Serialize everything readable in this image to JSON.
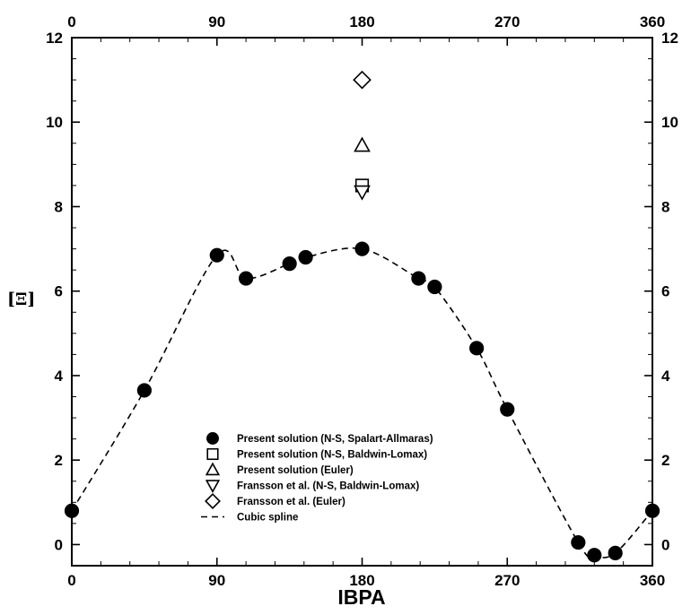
{
  "figure": {
    "background": "#ffffff",
    "ink_color": "#000000",
    "axes_style": "closed box, tick labels mirrored on top and right axes, ticks pointing inward"
  },
  "chart_data": {
    "type": "scatter",
    "title": "",
    "xlabel": "IBPA",
    "ylabel": "[Ξ]",
    "xlim": [
      0,
      360
    ],
    "ylim": [
      -0.5,
      12
    ],
    "xticks": [
      0,
      90,
      180,
      270,
      360
    ],
    "yticks": [
      0,
      2,
      4,
      6,
      8,
      10,
      12
    ],
    "x_minor_step": 18,
    "y_minor_step": 0.5,
    "grid": false,
    "legend_position": "inside, lower-center",
    "series": [
      {
        "name": "Present solution (N-S, Spalart-Allmaras)",
        "marker": "filled-circle-icon",
        "points": [
          [
            0,
            0.8
          ],
          [
            45,
            3.65
          ],
          [
            90,
            6.85
          ],
          [
            108,
            6.3
          ],
          [
            135,
            6.65
          ],
          [
            145,
            6.8
          ],
          [
            180,
            7.0
          ],
          [
            215,
            6.3
          ],
          [
            225,
            6.1
          ],
          [
            251,
            4.65
          ],
          [
            270,
            3.2
          ],
          [
            314,
            0.05
          ],
          [
            324,
            -0.25
          ],
          [
            337,
            -0.2
          ],
          [
            360,
            0.8
          ]
        ]
      },
      {
        "name": "Present solution (N-S, Baldwin-Lomax)",
        "marker": "open-square-icon",
        "points": [
          [
            180,
            8.5
          ]
        ]
      },
      {
        "name": "Present solution (Euler)",
        "marker": "open-triangle-up-icon",
        "points": [
          [
            180,
            9.45
          ]
        ]
      },
      {
        "name": "Fransson et al. (N-S, Baldwin-Lomax)",
        "marker": "open-triangle-down-icon",
        "points": [
          [
            180,
            8.35
          ]
        ]
      },
      {
        "name": "Fransson et al. (Euler)",
        "marker": "open-diamond-icon",
        "points": [
          [
            180,
            11.0
          ]
        ]
      }
    ],
    "spline": {
      "label": "Cubic spline",
      "style": "dashed",
      "through_series": 0
    },
    "legend": {
      "entries": [
        {
          "marker": "filled-circle-icon",
          "label": "Present solution (N-S, Spalart-Allmaras)"
        },
        {
          "marker": "open-square-icon",
          "label": "Present solution (N-S, Baldwin-Lomax)"
        },
        {
          "marker": "open-triangle-up-icon",
          "label": "Present solution (Euler)"
        },
        {
          "marker": "open-triangle-down-icon",
          "label": "Fransson et al. (N-S, Baldwin-Lomax)"
        },
        {
          "marker": "open-diamond-icon",
          "label": "Fransson et al. (Euler)"
        },
        {
          "marker": "dashed-line-icon",
          "label": "Cubic spline"
        }
      ]
    }
  }
}
